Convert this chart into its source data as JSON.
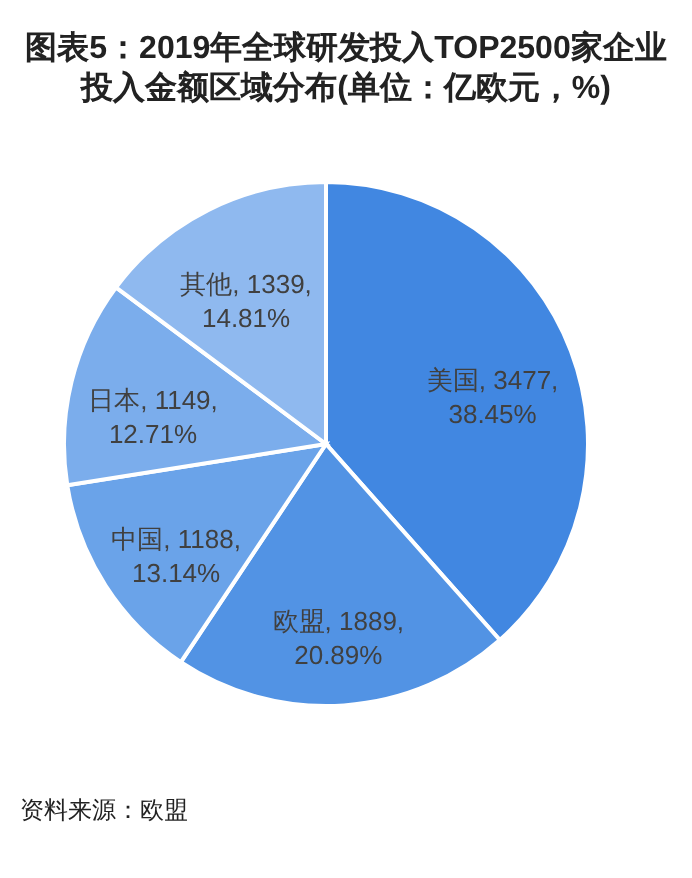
{
  "chart_data": {
    "type": "pie",
    "title": "图表5：2019年全球研发投入TOP2500家企业投入金额区域分布(单位：亿欧元，%)",
    "categories": [
      "美国",
      "欧盟",
      "中国",
      "日本",
      "其他"
    ],
    "values": [
      3477,
      1889,
      1188,
      1149,
      1339
    ],
    "value_labels": [
      "3477, 38.45%",
      "1889, 20.89%",
      "1188, 13.14%",
      "1149, 12.71%",
      "1339, 14.81%"
    ],
    "colors": [
      "#4187e1",
      "#5293e4",
      "#6aa3e9",
      "#7badec",
      "#8fb9ef"
    ],
    "annotations": [
      "资料来源：欧盟"
    ]
  }
}
